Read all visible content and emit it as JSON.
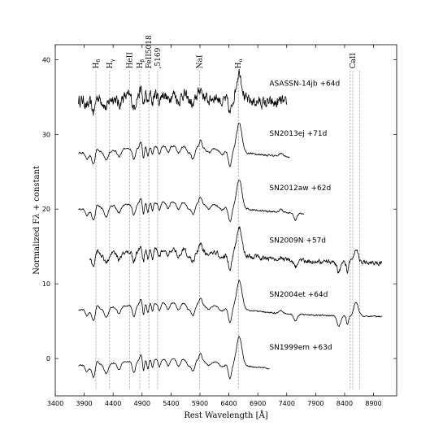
{
  "chart_data": {
    "type": "line",
    "xlabel": "Rest Wavelength [Å]",
    "ylabel": "Normalized F_λ + constant",
    "xlim": [
      3400,
      9300
    ],
    "ylim": [
      -5,
      42
    ],
    "xticks": [
      3400,
      3900,
      4400,
      4900,
      5400,
      5900,
      6400,
      6900,
      7400,
      7900,
      8400,
      8900
    ],
    "yticks": [
      0,
      10,
      20,
      30,
      40
    ],
    "grid": false,
    "lines": [
      {
        "x": 4102,
        "label": "H",
        "sub": "δ"
      },
      {
        "x": 4340,
        "label": "H",
        "sub": "γ"
      },
      {
        "x": 4686,
        "label": "HeII",
        "sub": ""
      },
      {
        "x": 4861,
        "label": "H",
        "sub": "β"
      },
      {
        "x": 5018,
        "label": "FeII5018",
        "sub": ""
      },
      {
        "x": 5169,
        "label": ",5169",
        "sub": ""
      },
      {
        "x": 5893,
        "label": "NaI",
        "sub": ""
      },
      {
        "x": 6563,
        "label": "H",
        "sub": "α"
      },
      {
        "x": 8498,
        "label": "",
        "sub": ""
      },
      {
        "x": 8542,
        "label": "CaII",
        "sub": ""
      },
      {
        "x": 8662,
        "label": "",
        "sub": ""
      }
    ],
    "series": [
      {
        "name": "ASASSN-14jb +64d",
        "offset": 34,
        "xmin": 3800,
        "xmax": 7400,
        "label_x": 7100,
        "label_y": 36.5,
        "noise": 1.2
      },
      {
        "name": "SN2013ej +71d",
        "offset": 27,
        "xmin": 3800,
        "xmax": 7450,
        "label_x": 7100,
        "label_y": 29.8,
        "noise": 0.2
      },
      {
        "name": "SN2012aw +62d",
        "offset": 19.5,
        "xmin": 3800,
        "xmax": 7700,
        "label_x": 7100,
        "label_y": 22.5,
        "noise": 0.2
      },
      {
        "name": "SN2009N +57d",
        "offset": 13.2,
        "xmin": 4000,
        "xmax": 9050,
        "label_x": 7100,
        "label_y": 15.5,
        "noise": 0.5
      },
      {
        "name": "SN2004et +64d",
        "offset": 6.0,
        "xmin": 3800,
        "xmax": 9050,
        "label_x": 7100,
        "label_y": 8.3,
        "noise": 0.15
      },
      {
        "name": "SN1999em +63d",
        "offset": -1.5,
        "xmin": 3800,
        "xmax": 7100,
        "label_x": 7100,
        "label_y": 1.2,
        "noise": 0.15
      }
    ]
  }
}
